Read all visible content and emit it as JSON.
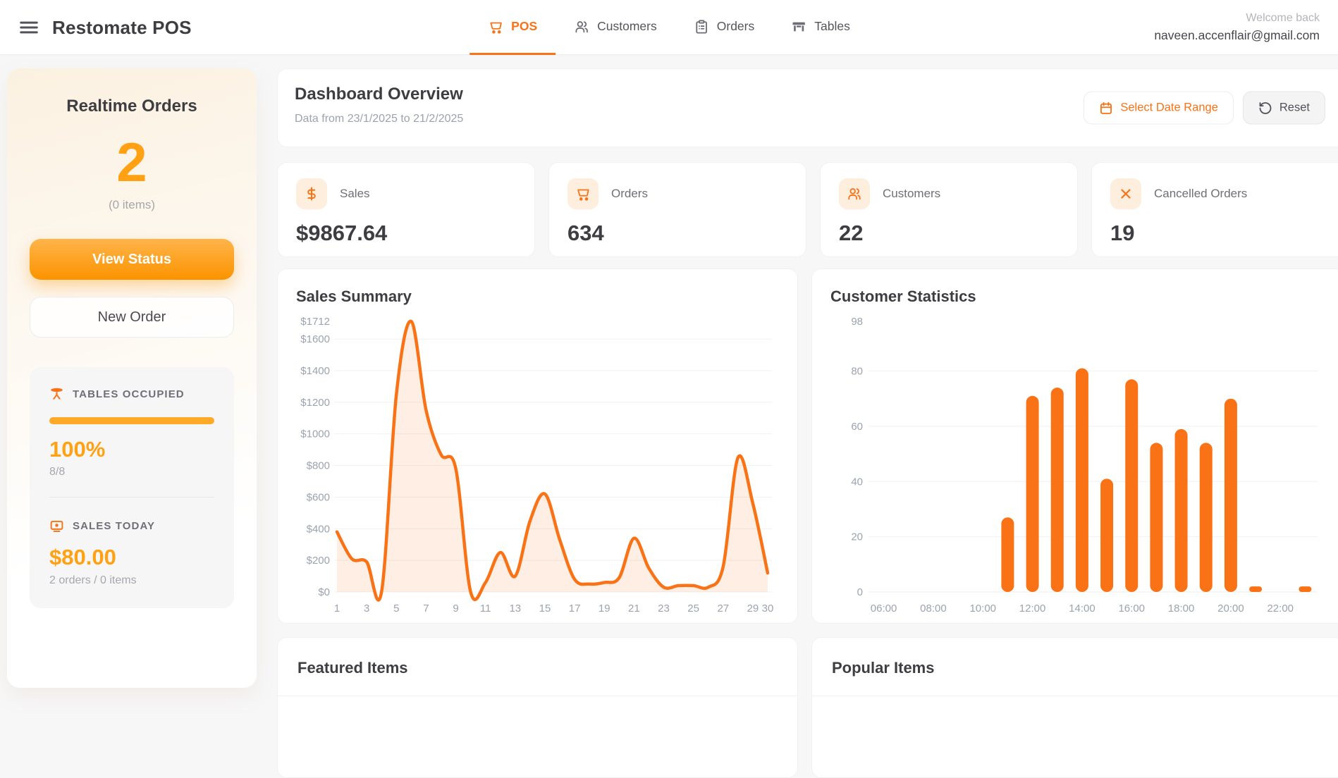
{
  "app": {
    "title": "Restomate POS",
    "menu_icon": "hamburger-icon"
  },
  "nav": {
    "tabs": [
      {
        "label": "POS",
        "icon": "cart-icon",
        "active": true
      },
      {
        "label": "Customers",
        "icon": "users-icon",
        "active": false
      },
      {
        "label": "Orders",
        "icon": "clipboard-icon",
        "active": false
      },
      {
        "label": "Tables",
        "icon": "table-icon",
        "active": false
      }
    ],
    "welcome": "Welcome back",
    "user_email": "naveen.accenflair@gmail.com"
  },
  "sidebar": {
    "title": "Realtime Orders",
    "order_count": "2",
    "items_note": "(0 items)",
    "view_status_label": "View Status",
    "new_order_label": "New Order",
    "tables_occupied": {
      "label": "TABLES OCCUPIED",
      "icon": "round-table-icon",
      "percent": "100%",
      "fraction": "8/8",
      "progress_pct": 100
    },
    "sales_today": {
      "label": "SALES TODAY",
      "icon": "cash-icon",
      "amount": "$80.00",
      "detail": "2 orders / 0 items"
    }
  },
  "header": {
    "title": "Dashboard Overview",
    "subtitle": "Data from 23/1/2025 to 21/2/2025",
    "date_range_label": "Select Date Range",
    "date_range_icon": "calendar-icon",
    "reset_label": "Reset",
    "reset_icon": "rotate-ccw-icon"
  },
  "stats": [
    {
      "label": "Sales",
      "value": "$9867.64",
      "icon": "dollar-icon"
    },
    {
      "label": "Orders",
      "value": "634",
      "icon": "cart-icon"
    },
    {
      "label": "Customers",
      "value": "22",
      "icon": "users-icon"
    },
    {
      "label": "Cancelled Orders",
      "value": "19",
      "icon": "x-icon"
    }
  ],
  "chart_data": [
    {
      "type": "area",
      "title": "Sales Summary",
      "x": [
        1,
        2,
        3,
        4,
        5,
        6,
        7,
        8,
        9,
        10,
        11,
        12,
        13,
        14,
        15,
        16,
        17,
        18,
        19,
        20,
        21,
        22,
        23,
        24,
        25,
        26,
        27,
        28,
        29,
        30
      ],
      "values": [
        380,
        210,
        190,
        0,
        1250,
        1712,
        1150,
        870,
        780,
        0,
        60,
        250,
        100,
        450,
        620,
        330,
        80,
        50,
        60,
        90,
        340,
        150,
        30,
        40,
        40,
        30,
        160,
        850,
        560,
        120
      ],
      "y_ticks": [
        1712,
        1600,
        1400,
        1200,
        1000,
        800,
        600,
        400,
        200,
        0
      ],
      "y_tick_labels": [
        "$1712",
        "$1600",
        "$1400",
        "$1200",
        "$1000",
        "$800",
        "$600",
        "$400",
        "$200",
        "$0"
      ],
      "x_ticks": [
        1,
        3,
        5,
        7,
        9,
        11,
        13,
        15,
        17,
        19,
        21,
        23,
        25,
        27,
        29,
        30
      ],
      "ylim": [
        0,
        1712
      ],
      "grid": true,
      "line_color": "#f97316",
      "fill_color": "rgba(249,115,22,0.12)"
    },
    {
      "type": "bar",
      "title": "Customer Statistics",
      "categories": [
        "06:00",
        "07:00",
        "08:00",
        "09:00",
        "10:00",
        "11:00",
        "12:00",
        "13:00",
        "14:00",
        "15:00",
        "16:00",
        "17:00",
        "18:00",
        "19:00",
        "20:00",
        "21:00",
        "22:00",
        "23:00"
      ],
      "values": [
        0,
        0,
        0,
        0,
        0,
        27,
        71,
        74,
        81,
        41,
        77,
        54,
        59,
        54,
        70,
        2,
        0,
        2
      ],
      "y_ticks": [
        0,
        20,
        40,
        60,
        80,
        98
      ],
      "x_tick_labels": [
        "06:00",
        "08:00",
        "10:00",
        "12:00",
        "14:00",
        "16:00",
        "18:00",
        "20:00",
        "22:00"
      ],
      "ylim": [
        0,
        98
      ],
      "grid": true,
      "bar_color": "#f97316"
    }
  ],
  "bottom_panels": [
    {
      "title": "Featured Items"
    },
    {
      "title": "Popular Items"
    }
  ],
  "colors": {
    "accent_orange": "#f97316",
    "amber": "#ffa113",
    "chip_bg": "#fdeedd",
    "text_dark": "#3d3d42",
    "text_gray": "#9ca3af"
  }
}
